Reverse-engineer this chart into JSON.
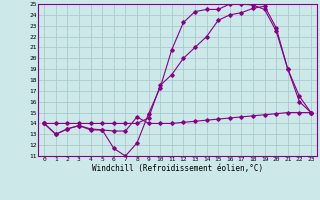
{
  "xlabel": "Windchill (Refroidissement éolien,°C)",
  "background_color": "#cce8e8",
  "grid_color": "#aacccc",
  "line_color": "#880088",
  "xlim": [
    -0.5,
    23.5
  ],
  "ylim": [
    11,
    25
  ],
  "yticks": [
    11,
    12,
    13,
    14,
    15,
    16,
    17,
    18,
    19,
    20,
    21,
    22,
    23,
    24,
    25
  ],
  "xticks": [
    0,
    1,
    2,
    3,
    4,
    5,
    6,
    7,
    8,
    9,
    10,
    11,
    12,
    13,
    14,
    15,
    16,
    17,
    18,
    19,
    20,
    21,
    22,
    23
  ],
  "line1_x": [
    0,
    1,
    2,
    3,
    4,
    5,
    6,
    7,
    8,
    9,
    10,
    11,
    12,
    13,
    14,
    15,
    16,
    17,
    18,
    19,
    20,
    21,
    22,
    23
  ],
  "line1_y": [
    14.0,
    13.0,
    13.5,
    13.8,
    13.5,
    13.4,
    13.3,
    13.3,
    14.6,
    14.0,
    14.0,
    14.0,
    14.1,
    14.2,
    14.3,
    14.4,
    14.5,
    14.6,
    14.7,
    14.8,
    14.9,
    15.0,
    15.0,
    15.0
  ],
  "line2_x": [
    0,
    1,
    2,
    3,
    4,
    5,
    6,
    7,
    8,
    9,
    10,
    11,
    12,
    13,
    14,
    15,
    16,
    17,
    18,
    19,
    20,
    21,
    22,
    23
  ],
  "line2_y": [
    14.0,
    13.0,
    13.5,
    13.8,
    13.4,
    13.4,
    11.7,
    11.0,
    12.2,
    14.9,
    17.3,
    20.8,
    23.3,
    24.3,
    24.5,
    24.5,
    25.0,
    25.0,
    24.9,
    24.5,
    22.5,
    19.0,
    16.5,
    15.0
  ],
  "line3_x": [
    0,
    1,
    2,
    3,
    4,
    5,
    6,
    7,
    8,
    9,
    10,
    11,
    12,
    13,
    14,
    15,
    16,
    17,
    18,
    19,
    20,
    21,
    22,
    23
  ],
  "line3_y": [
    14.0,
    14.0,
    14.0,
    14.0,
    14.0,
    14.0,
    14.0,
    14.0,
    14.0,
    14.5,
    17.5,
    18.5,
    20.0,
    21.0,
    22.0,
    23.5,
    24.0,
    24.2,
    24.6,
    24.8,
    22.8,
    19.0,
    16.0,
    15.0
  ]
}
